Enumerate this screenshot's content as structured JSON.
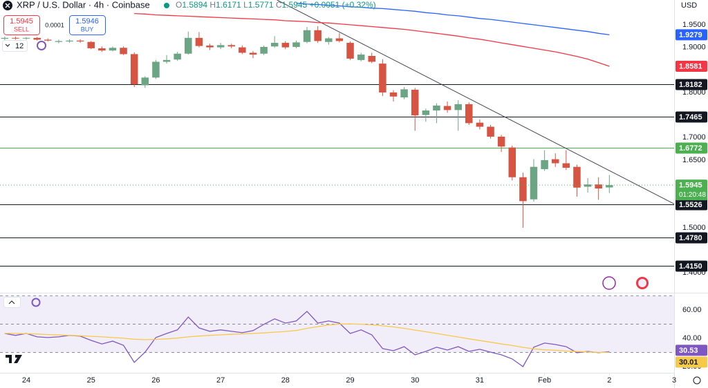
{
  "header": {
    "sell_label": "SELL",
    "buy_label": "BUY",
    "sell_price": 1.5945,
    "buy_price": 1.5946,
    "spread": 0.0001,
    "interval": "12",
    "ohlc_keys": [
      "O",
      "H",
      "L",
      "C"
    ],
    "change": "+0.0051 (+0.32%)",
    "countdown": "01:20:48"
  },
  "chart_data": [
    {
      "type": "candlestick",
      "title": "XRP / U.S. Dollar · 4h · Coinbase",
      "currency": "USD",
      "x": [
        23.667,
        23.833,
        24,
        24.167,
        24.333,
        24.5,
        24.667,
        24.833,
        25,
        25.167,
        25.333,
        25.5,
        25.667,
        25.833,
        26,
        26.167,
        26.333,
        26.5,
        26.667,
        26.833,
        27,
        27.167,
        27.333,
        27.5,
        27.667,
        27.833,
        28,
        28.167,
        28.333,
        28.5,
        28.667,
        28.833,
        29,
        29.167,
        29.333,
        29.5,
        29.667,
        29.833,
        30,
        30.167,
        30.333,
        30.5,
        30.667,
        30.833,
        31,
        31.167,
        31.333,
        31.5,
        31.667,
        31.833,
        32,
        32.167,
        32.333,
        32.5,
        32.667,
        32.833,
        33
      ],
      "xlim": [
        23.594,
        34
      ],
      "xticks": [
        24,
        25,
        26,
        27,
        28,
        29,
        30,
        31,
        {
          "value": 32,
          "label": "Feb"
        },
        {
          "value": 33,
          "label": "2"
        },
        {
          "value": 34,
          "label": "3"
        }
      ],
      "ylim": [
        1.359,
        2.005
      ],
      "yticks": [
        {
          "value": 1.95,
          "label": "1.9500"
        },
        {
          "value": 1.9,
          "label": "1.9000"
        },
        {
          "value": 1.8,
          "label": "1.8000"
        },
        {
          "value": 1.7,
          "label": "1.7000"
        },
        {
          "value": 1.65,
          "label": "1.6500"
        },
        {
          "value": 1.5,
          "label": "1.5000"
        },
        {
          "value": 1.4,
          "label": "1.4000"
        }
      ],
      "up_color": "#6ba583",
      "down_color": "#d75442",
      "candles": {
        "open": [
          1.919,
          1.921,
          1.92,
          1.921,
          1.917,
          1.912,
          1.913,
          1.915,
          1.912,
          1.898,
          1.893,
          1.899,
          1.885,
          1.816,
          1.833,
          1.868,
          1.873,
          1.886,
          1.921,
          1.904,
          1.9,
          1.905,
          1.9,
          1.888,
          1.886,
          1.902,
          1.91,
          1.901,
          1.912,
          1.938,
          1.912,
          1.92,
          1.91,
          1.872,
          1.881,
          1.864,
          1.8,
          1.789,
          1.806,
          1.75,
          1.76,
          1.77,
          1.761,
          1.774,
          1.733,
          1.724,
          1.702,
          1.678,
          1.612,
          1.563,
          1.63,
          1.652,
          1.643,
          1.635,
          1.591,
          1.596,
          1.5894
        ],
        "high": [
          1.924,
          1.924,
          1.923,
          1.923,
          1.92,
          1.917,
          1.918,
          1.918,
          1.914,
          1.902,
          1.902,
          1.902,
          1.889,
          1.836,
          1.872,
          1.883,
          1.89,
          1.935,
          1.934,
          1.908,
          1.91,
          1.908,
          1.904,
          1.892,
          1.904,
          1.925,
          1.914,
          1.915,
          1.945,
          1.947,
          1.923,
          1.932,
          1.913,
          1.888,
          1.888,
          1.874,
          1.805,
          1.812,
          1.81,
          1.764,
          1.776,
          1.78,
          1.783,
          1.778,
          1.74,
          1.728,
          1.706,
          1.682,
          1.622,
          1.652,
          1.672,
          1.665,
          1.672,
          1.64,
          1.61,
          1.612,
          1.6171
        ],
        "low": [
          1.916,
          1.917,
          1.917,
          1.915,
          1.913,
          1.909,
          1.91,
          1.91,
          1.896,
          1.89,
          1.891,
          1.883,
          1.812,
          1.81,
          1.83,
          1.864,
          1.87,
          1.884,
          1.9,
          1.894,
          1.896,
          1.898,
          1.885,
          1.876,
          1.883,
          1.899,
          1.896,
          1.898,
          1.909,
          1.91,
          1.906,
          1.911,
          1.872,
          1.869,
          1.865,
          1.792,
          1.78,
          1.785,
          1.715,
          1.735,
          1.732,
          1.755,
          1.715,
          1.728,
          1.718,
          1.698,
          1.668,
          1.605,
          1.5,
          1.558,
          1.626,
          1.635,
          1.628,
          1.569,
          1.578,
          1.562,
          1.5771
        ],
        "close": [
          1.921,
          1.92,
          1.921,
          1.917,
          1.915,
          1.914,
          1.915,
          1.913,
          1.898,
          1.893,
          1.899,
          1.885,
          1.818,
          1.833,
          1.868,
          1.872,
          1.886,
          1.921,
          1.903,
          1.9,
          1.905,
          1.902,
          1.888,
          1.884,
          1.901,
          1.91,
          1.9,
          1.911,
          1.938,
          1.914,
          1.92,
          1.914,
          1.875,
          1.884,
          1.868,
          1.8,
          1.791,
          1.807,
          1.749,
          1.76,
          1.771,
          1.761,
          1.774,
          1.732,
          1.724,
          1.702,
          1.68,
          1.612,
          1.559,
          1.635,
          1.65,
          1.643,
          1.633,
          1.589,
          1.596,
          1.587,
          1.5945
        ]
      },
      "series": [
        {
          "color": "#2962ff",
          "values": [
            null,
            null,
            null,
            null,
            null,
            null,
            null,
            null,
            null,
            null,
            null,
            null,
            null,
            null,
            null,
            null,
            null,
            null,
            null,
            null,
            null,
            null,
            null,
            null,
            null,
            null,
            null,
            1.998,
            1.996,
            1.995,
            1.993,
            1.992,
            1.99,
            1.989,
            1.987,
            1.986,
            1.984,
            1.982,
            1.98,
            1.977,
            1.975,
            1.972,
            1.97,
            1.967,
            1.964,
            1.962,
            1.959,
            1.956,
            1.953,
            1.95,
            1.947,
            1.944,
            1.941,
            1.938,
            1.935,
            1.931,
            1.9279
          ]
        },
        {
          "color": "#f23645",
          "values": [
            null,
            null,
            null,
            null,
            null,
            null,
            null,
            null,
            null,
            null,
            null,
            null,
            1.975,
            1.974,
            1.972,
            1.971,
            1.97,
            1.969,
            1.968,
            1.967,
            1.966,
            1.965,
            1.964,
            1.963,
            1.962,
            1.961,
            1.959,
            1.958,
            1.957,
            1.955,
            1.954,
            1.952,
            1.95,
            1.948,
            1.946,
            1.944,
            1.942,
            1.94,
            1.937,
            1.934,
            1.931,
            1.928,
            1.925,
            1.921,
            1.918,
            1.914,
            1.91,
            1.906,
            1.902,
            1.898,
            1.894,
            1.89,
            1.885,
            1.88,
            1.874,
            1.866,
            1.8581
          ]
        }
      ],
      "levels": [
        {
          "value": 1.8182,
          "color": "#131722"
        },
        {
          "value": 1.7465,
          "color": "#131722"
        },
        {
          "value": 1.6772,
          "color": "#4caf50"
        },
        {
          "value": 1.5526,
          "color": "#131722"
        },
        {
          "value": 1.478,
          "label": "1.4780",
          "color": "#131722"
        },
        {
          "value": 1.415,
          "label": "1.4150",
          "color": "#131722"
        }
      ],
      "price_color": "#4caf50",
      "trendline": {
        "x": [
          27.87,
          34
        ],
        "y": [
          2.005,
          1.553
        ],
        "color": "#434651"
      }
    },
    {
      "type": "line",
      "ylim": [
        15.6,
        70.2
      ],
      "yticks": [
        {
          "value": 60,
          "label": "60.00"
        },
        {
          "value": 40,
          "label": "40.00"
        },
        {
          "value": 20,
          "label": "20.00"
        }
      ],
      "levels": [
        70,
        50,
        30
      ],
      "series": [
        {
          "color": "#7e57c2",
          "values": [
            43.4,
            42,
            43.4,
            41,
            40.5,
            41,
            42,
            41.5,
            38.5,
            36,
            38,
            35,
            23,
            30.2,
            40.5,
            43.4,
            45.9,
            55,
            47.3,
            44.9,
            45.9,
            44.9,
            43.9,
            45.4,
            49.8,
            53.7,
            50.7,
            52.2,
            59,
            50.7,
            52.2,
            50.7,
            43.4,
            45.9,
            42.4,
            32.7,
            31.2,
            34.1,
            28.3,
            30.7,
            33.7,
            31.7,
            34.1,
            30.7,
            32.2,
            30.2,
            28.3,
            25.4,
            20,
            33.7,
            36.6,
            35.6,
            34.1,
            29.8,
            30.7,
            29.8,
            30.53
          ]
        },
        {
          "color": "#f7c948",
          "values": [
            43.5,
            43.4,
            43.2,
            43,
            42.6,
            42.3,
            42,
            41.8,
            41.4,
            41,
            40.5,
            40,
            39.3,
            39,
            39.2,
            39.6,
            40.1,
            41,
            41.6,
            42,
            42.4,
            42.8,
            43.1,
            43.4,
            43.8,
            44.3,
            44.8,
            45.5,
            47,
            48.2,
            49.4,
            50,
            50.1,
            49.9,
            49.5,
            48.8,
            48,
            47,
            45.8,
            44.6,
            43.4,
            42.1,
            40.9,
            39.6,
            38.4,
            37.2,
            36,
            34.9,
            33.6,
            32.5,
            31.9,
            31.5,
            31,
            30.6,
            30.3,
            30.1,
            30.01
          ]
        }
      ]
    }
  ]
}
